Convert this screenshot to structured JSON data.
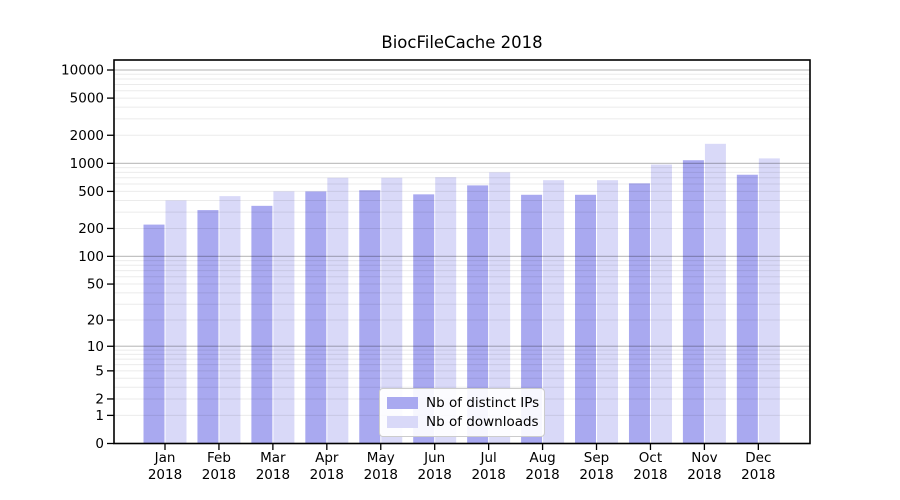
{
  "chart_data": {
    "type": "bar",
    "title": "BiocFileCache 2018",
    "categories": [
      "Jan 2018",
      "Feb 2018",
      "Mar 2018",
      "Apr 2018",
      "May 2018",
      "Jun 2018",
      "Jul 2018",
      "Aug 2018",
      "Sep 2018",
      "Oct 2018",
      "Nov 2018",
      "Dec 2018"
    ],
    "series": [
      {
        "name": "Nb of distinct IPs",
        "color": "#a9a9f0",
        "values": [
          220,
          315,
          350,
          500,
          515,
          465,
          580,
          460,
          460,
          610,
          1080,
          755
        ]
      },
      {
        "name": "Nb of downloads",
        "color": "#d9d9f8",
        "values": [
          400,
          445,
          500,
          700,
          700,
          710,
          800,
          660,
          660,
          970,
          1620,
          1130
        ]
      }
    ],
    "y_axis": {
      "scale": "log10(value+1)",
      "tick_labels": [
        0,
        1,
        2,
        5,
        10,
        20,
        50,
        100,
        200,
        500,
        1000,
        2000,
        5000,
        10000
      ],
      "ylim": [
        0,
        12800
      ]
    },
    "x_axis": {
      "label_lines": 2
    },
    "grid": {
      "shown": true,
      "minor_color": "rgba(0,0,0,0.08)",
      "major_color": "rgba(0,0,0,0.24)",
      "drawn_over_bars": true
    },
    "legend": {
      "position": "inside-bottom-center"
    },
    "frame_color": "#000000"
  }
}
